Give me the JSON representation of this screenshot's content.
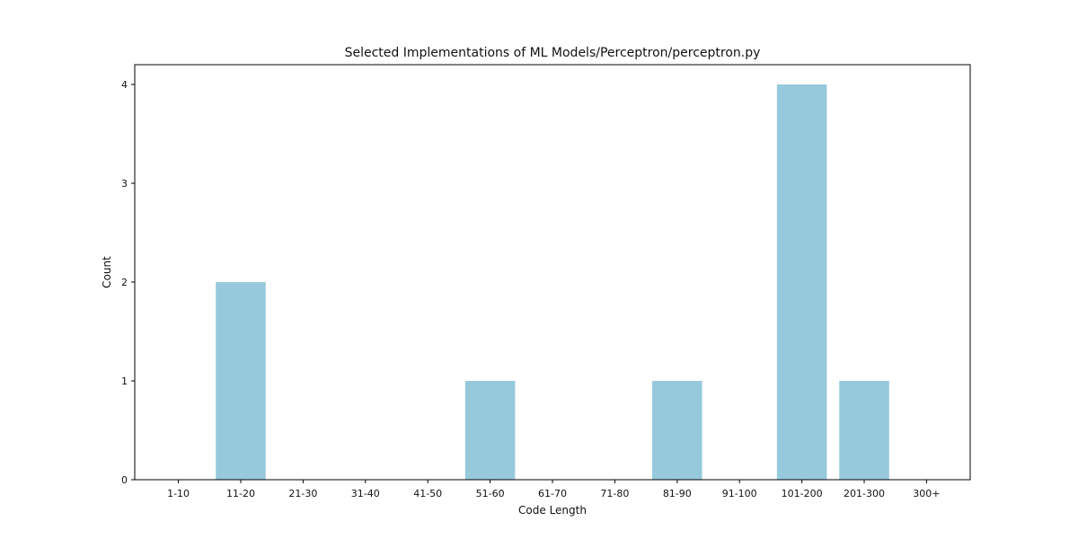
{
  "chart_data": {
    "type": "bar",
    "title": "Selected Implementations of ML Models/Perceptron/perceptron.py",
    "xlabel": "Code Length",
    "ylabel": "Count",
    "categories": [
      "1-10",
      "11-20",
      "21-30",
      "31-40",
      "41-50",
      "51-60",
      "61-70",
      "71-80",
      "81-90",
      "91-100",
      "101-200",
      "201-300",
      "300+"
    ],
    "values": [
      0,
      2,
      0,
      0,
      0,
      1,
      0,
      0,
      1,
      0,
      4,
      1,
      0
    ],
    "yticks": [
      0,
      1,
      2,
      3,
      4
    ],
    "ylim": [
      0,
      4.2
    ],
    "grid": false,
    "bar_color": "#96c9dc"
  }
}
